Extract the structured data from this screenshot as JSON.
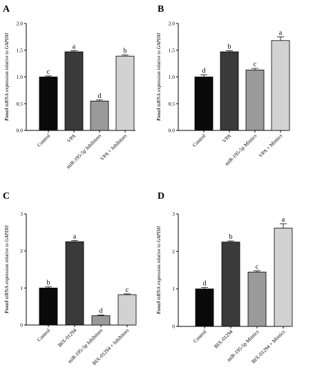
{
  "chart_data": [
    {
      "type": "bar",
      "panel": "A",
      "ylabel_gene": "Foxo3",
      "ylabel_text": " mRNA expression relative to ",
      "ylabel_ref": "GAPDH",
      "ylim": [
        0,
        2.0
      ],
      "yticks": [
        "0.0",
        "0.5",
        "1.0",
        "1.5",
        "2.0"
      ],
      "categories": [
        "Control",
        "VPA",
        "miR-195-5p Inhibitors",
        "VPA + Inhibitors"
      ],
      "values": [
        1.0,
        1.47,
        0.55,
        1.39
      ],
      "errors": [
        0.02,
        0.02,
        0.02,
        0.02
      ],
      "significance": [
        "c",
        "a",
        "d",
        "b"
      ],
      "colors": [
        "#0a0a0a",
        "#3a3a3a",
        "#9a9a9a",
        "#d2d2d2"
      ]
    },
    {
      "type": "bar",
      "panel": "B",
      "ylabel_gene": "Foxo3",
      "ylabel_text": " mRNA expression relative to ",
      "ylabel_ref": "GAPDH",
      "ylim": [
        0,
        2.0
      ],
      "yticks": [
        "0.0",
        "0.5",
        "1.0",
        "1.5",
        "2.0"
      ],
      "categories": [
        "Control",
        "VPA",
        "miR-195-5p Mimics",
        "VPA + Mimics"
      ],
      "values": [
        1.0,
        1.47,
        1.13,
        1.68
      ],
      "errors": [
        0.04,
        0.02,
        0.03,
        0.07
      ],
      "significance": [
        "d",
        "b",
        "c",
        "a"
      ],
      "colors": [
        "#0a0a0a",
        "#3a3a3a",
        "#9a9a9a",
        "#d2d2d2"
      ]
    },
    {
      "type": "bar",
      "panel": "C",
      "ylabel_gene": "Foxo3",
      "ylabel_text": " mRNA expression relative to ",
      "ylabel_ref": "GAPDH",
      "ylim": [
        0,
        3
      ],
      "yticks": [
        "0",
        "1",
        "2",
        "3"
      ],
      "categories": [
        "Control",
        "BIX-01294",
        "miR-195-5p Inhibitors",
        "BIX-01294 + Inhibitors"
      ],
      "values": [
        1.0,
        2.25,
        0.25,
        0.82
      ],
      "errors": [
        0.03,
        0.03,
        0.02,
        0.02
      ],
      "significance": [
        "b",
        "a",
        "d",
        "c"
      ],
      "colors": [
        "#0a0a0a",
        "#3a3a3a",
        "#9a9a9a",
        "#d2d2d2"
      ]
    },
    {
      "type": "bar",
      "panel": "D",
      "ylabel_gene": "Foxo3",
      "ylabel_text": " mRNA expression relative to ",
      "ylabel_ref": "GAPDH",
      "ylim": [
        0,
        3
      ],
      "yticks": [
        "0",
        "1",
        "2",
        "3"
      ],
      "categories": [
        "Control",
        "BIX-01294",
        "miR-195-5p Mimics",
        "BIX-01294 + Mimics"
      ],
      "values": [
        1.0,
        2.25,
        1.45,
        2.62
      ],
      "errors": [
        0.04,
        0.03,
        0.03,
        0.12
      ],
      "significance": [
        "d",
        "b",
        "c",
        "a"
      ],
      "colors": [
        "#0a0a0a",
        "#3a3a3a",
        "#9a9a9a",
        "#d2d2d2"
      ]
    }
  ]
}
